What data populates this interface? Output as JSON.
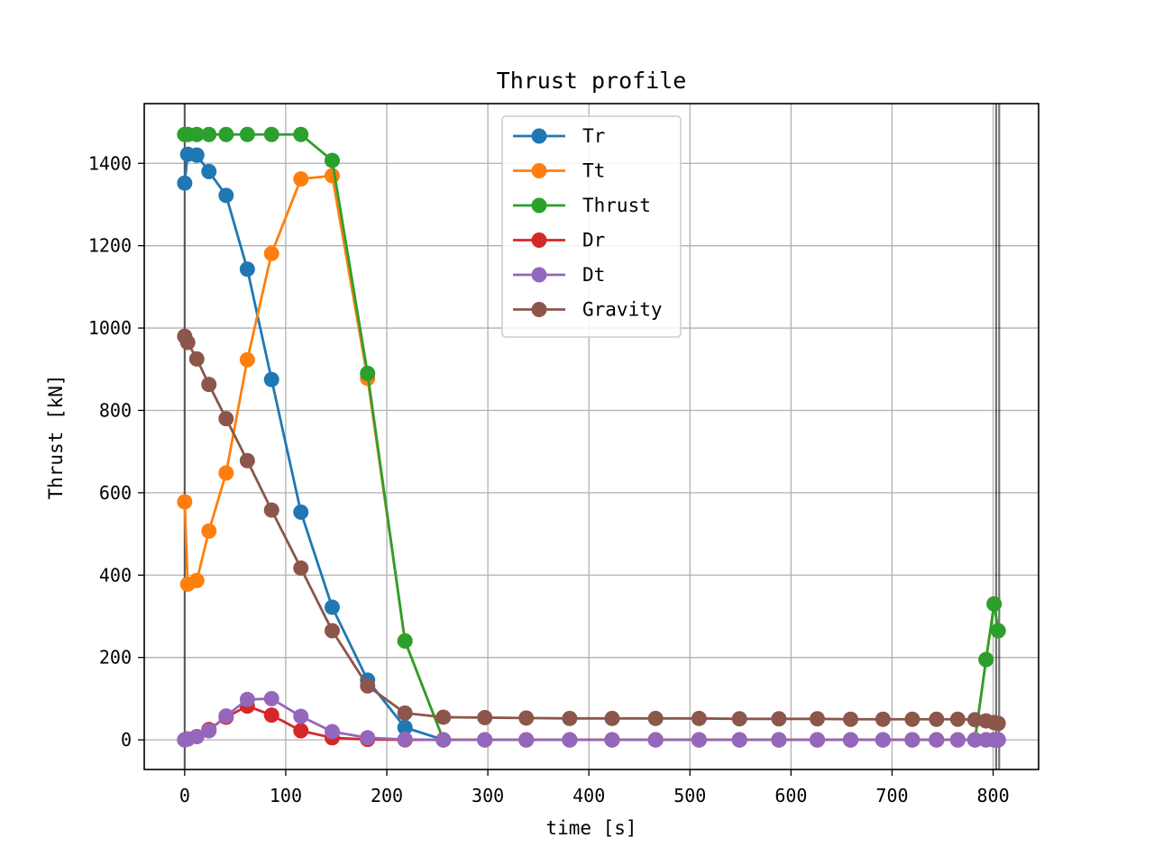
{
  "chart_data": {
    "type": "line",
    "title": "Thrust profile",
    "xlabel": "time [s]",
    "ylabel": "Thrust [kN]",
    "xlim": [
      -40,
      845
    ],
    "ylim": [
      -72,
      1545
    ],
    "xticks": [
      0,
      100,
      200,
      300,
      400,
      500,
      600,
      700,
      800
    ],
    "yticks": [
      0,
      200,
      400,
      600,
      800,
      1000,
      1200,
      1400
    ],
    "grid": true,
    "legend_position": "upper center",
    "vlines": [
      0,
      803,
      806
    ],
    "x": [
      0,
      3,
      12,
      24,
      41,
      62,
      86,
      115,
      146,
      181,
      218,
      256,
      297,
      338,
      381,
      423,
      466,
      509,
      549,
      588,
      626,
      659,
      691,
      720,
      744,
      765,
      782,
      793,
      801,
      805
    ],
    "series": [
      {
        "name": "Tr",
        "color": "#1f77b4",
        "values": [
          1352,
          1422,
          1420,
          1380,
          1322,
          1143,
          875,
          553,
          322,
          145,
          30,
          0,
          0,
          0,
          0,
          0,
          0,
          0,
          0,
          0,
          0,
          0,
          0,
          0,
          0,
          0,
          0,
          0,
          0,
          0
        ]
      },
      {
        "name": "Tt",
        "color": "#ff7f0e",
        "values": [
          578,
          378,
          387,
          507,
          648,
          923,
          1181,
          1362,
          1370,
          878,
          240,
          0,
          0,
          0,
          0,
          0,
          0,
          0,
          0,
          0,
          0,
          0,
          0,
          0,
          0,
          0,
          0,
          195,
          330,
          265
        ]
      },
      {
        "name": "Thrust",
        "color": "#2ca02c",
        "values": [
          1470,
          1470,
          1470,
          1470,
          1470,
          1470,
          1470,
          1470,
          1407,
          890,
          240,
          0,
          0,
          0,
          0,
          0,
          0,
          0,
          0,
          0,
          0,
          0,
          0,
          0,
          0,
          0,
          0,
          195,
          330,
          265
        ]
      },
      {
        "name": "Dr",
        "color": "#d62728",
        "values": [
          0,
          2,
          8,
          25,
          55,
          82,
          60,
          22,
          5,
          1,
          0,
          0,
          0,
          0,
          0,
          0,
          0,
          0,
          0,
          0,
          0,
          0,
          0,
          0,
          0,
          0,
          0,
          0,
          0,
          0
        ]
      },
      {
        "name": "Dt",
        "color": "#9467bd",
        "values": [
          0,
          2,
          8,
          22,
          58,
          98,
          100,
          57,
          20,
          5,
          1,
          0,
          0,
          0,
          0,
          0,
          0,
          0,
          0,
          0,
          0,
          0,
          0,
          0,
          0,
          0,
          0,
          0,
          0,
          0
        ]
      },
      {
        "name": "Gravity",
        "color": "#8c564b",
        "values": [
          980,
          965,
          925,
          863,
          780,
          678,
          558,
          417,
          265,
          131,
          65,
          55,
          54,
          53,
          52,
          52,
          52,
          52,
          51,
          51,
          51,
          50,
          50,
          50,
          50,
          50,
          49,
          46,
          42,
          40
        ]
      }
    ]
  }
}
